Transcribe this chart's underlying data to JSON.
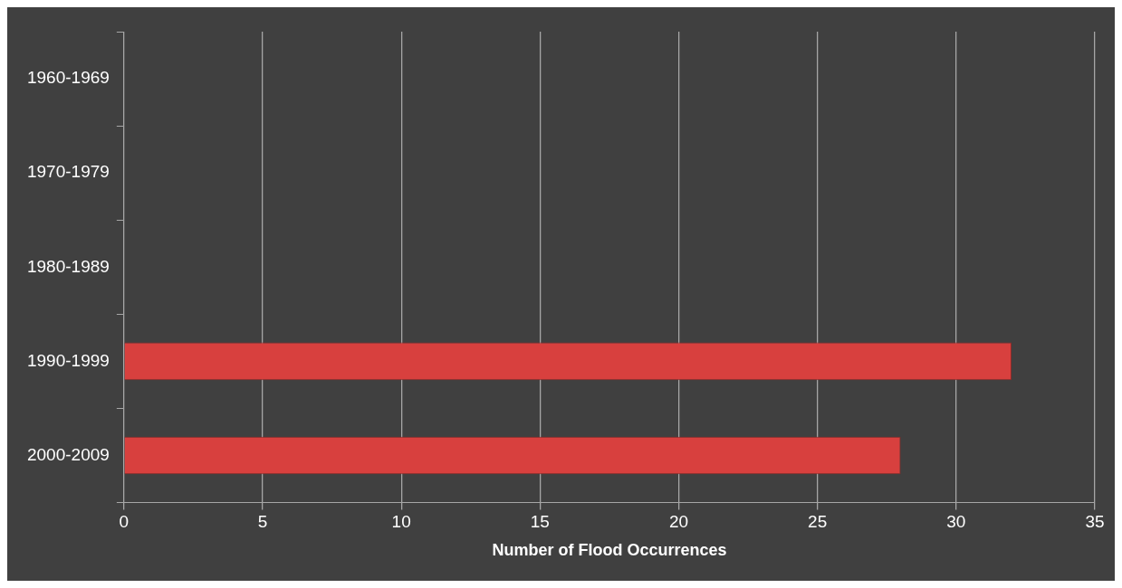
{
  "chart_data": {
    "type": "bar",
    "orientation": "horizontal",
    "xlabel": "Number of Flood Occurrences",
    "categories": [
      "1960-1969",
      "1970-1979",
      "1980-1989",
      "1990-1999",
      "2000-2009"
    ],
    "values": [
      0,
      0,
      0,
      32,
      28
    ],
    "color": "#d8403e",
    "xlim": [
      0,
      35
    ],
    "xticks": [
      0,
      5,
      10,
      15,
      20,
      25,
      30,
      35
    ],
    "grid": "x",
    "legend": false
  }
}
